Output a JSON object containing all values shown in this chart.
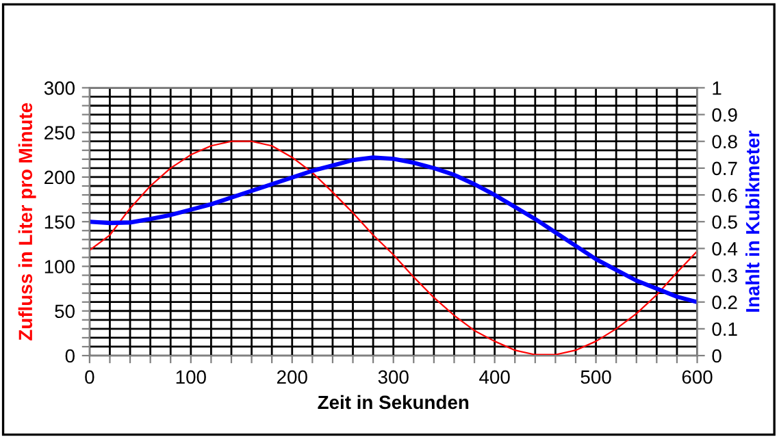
{
  "chart_data": {
    "type": "line",
    "xlabel": "Zeit in Sekunden",
    "ylabel": "Zufluss in Liter pro Minute",
    "y2label": "Inahlt in Kubikmeter",
    "x": [
      0,
      20,
      40,
      60,
      80,
      100,
      120,
      140,
      160,
      180,
      200,
      220,
      240,
      260,
      280,
      300,
      320,
      340,
      360,
      380,
      400,
      420,
      440,
      460,
      480,
      500,
      520,
      540,
      560,
      580,
      600
    ],
    "series": [
      {
        "color": "#ff0000",
        "line_style": "solid",
        "values": [
          118,
          135,
          165,
          190,
          210,
          225,
          235,
          240,
          240,
          235,
          222,
          205,
          183,
          160,
          135,
          113,
          88,
          65,
          45,
          28,
          16,
          6,
          1,
          1,
          6,
          16,
          30,
          47,
          68,
          93,
          117
        ]
      },
      {
        "color": "#0000ff",
        "axis": "y2",
        "line_style": "solid",
        "values": [
          0.5,
          0.495,
          0.497,
          0.51,
          0.525,
          0.545,
          0.565,
          0.59,
          0.615,
          0.64,
          0.665,
          0.69,
          0.71,
          0.73,
          0.74,
          0.735,
          0.72,
          0.7,
          0.675,
          0.64,
          0.6,
          0.555,
          0.51,
          0.46,
          0.41,
          0.36,
          0.32,
          0.28,
          0.25,
          0.22,
          0.2
        ]
      }
    ],
    "xlim": [
      0,
      600
    ],
    "xticks": [
      0,
      {
        "value": 20,
        "label": null
      },
      {
        "value": 40,
        "label": null
      },
      {
        "value": 60,
        "label": null
      },
      {
        "value": 80,
        "label": null
      },
      100,
      {
        "value": 120,
        "label": null
      },
      {
        "value": 140,
        "label": null
      },
      {
        "value": 160,
        "label": null
      },
      {
        "value": 180,
        "label": null
      },
      200,
      {
        "value": 220,
        "label": null
      },
      {
        "value": 240,
        "label": null
      },
      {
        "value": 260,
        "label": null
      },
      {
        "value": 280,
        "label": null
      },
      300,
      {
        "value": 320,
        "label": null
      },
      {
        "value": 340,
        "label": null
      },
      {
        "value": 360,
        "label": null
      },
      {
        "value": 380,
        "label": null
      },
      400,
      {
        "value": 420,
        "label": null
      },
      {
        "value": 440,
        "label": null
      },
      {
        "value": 460,
        "label": null
      },
      {
        "value": 480,
        "label": null
      },
      500,
      {
        "value": 520,
        "label": null
      },
      {
        "value": 540,
        "label": null
      },
      {
        "value": 560,
        "label": null
      },
      {
        "value": 580,
        "label": null
      },
      600
    ],
    "ylim": [
      0,
      300
    ],
    "yticks": [
      0,
      {
        "value": 10,
        "label": null
      },
      {
        "value": 20,
        "label": null
      },
      {
        "value": 30,
        "label": null
      },
      {
        "value": 40,
        "label": null
      },
      50,
      {
        "value": 60,
        "label": null
      },
      {
        "value": 70,
        "label": null
      },
      {
        "value": 80,
        "label": null
      },
      {
        "value": 90,
        "label": null
      },
      100,
      {
        "value": 110,
        "label": null
      },
      {
        "value": 120,
        "label": null
      },
      {
        "value": 130,
        "label": null
      },
      {
        "value": 140,
        "label": null
      },
      150,
      {
        "value": 160,
        "label": null
      },
      {
        "value": 170,
        "label": null
      },
      {
        "value": 180,
        "label": null
      },
      {
        "value": 190,
        "label": null
      },
      200,
      {
        "value": 210,
        "label": null
      },
      {
        "value": 220,
        "label": null
      },
      {
        "value": 230,
        "label": null
      },
      {
        "value": 240,
        "label": null
      },
      250,
      {
        "value": 260,
        "label": null
      },
      {
        "value": 270,
        "label": null
      },
      {
        "value": 280,
        "label": null
      },
      {
        "value": 290,
        "label": null
      },
      300
    ],
    "y2lim": [
      0,
      1
    ],
    "y2ticks": [
      0,
      0.1,
      0.2,
      0.3,
      0.4,
      0.5,
      0.6,
      0.7,
      0.8,
      0.9,
      1
    ],
    "grid": true,
    "legend": false,
    "marker": "none"
  }
}
